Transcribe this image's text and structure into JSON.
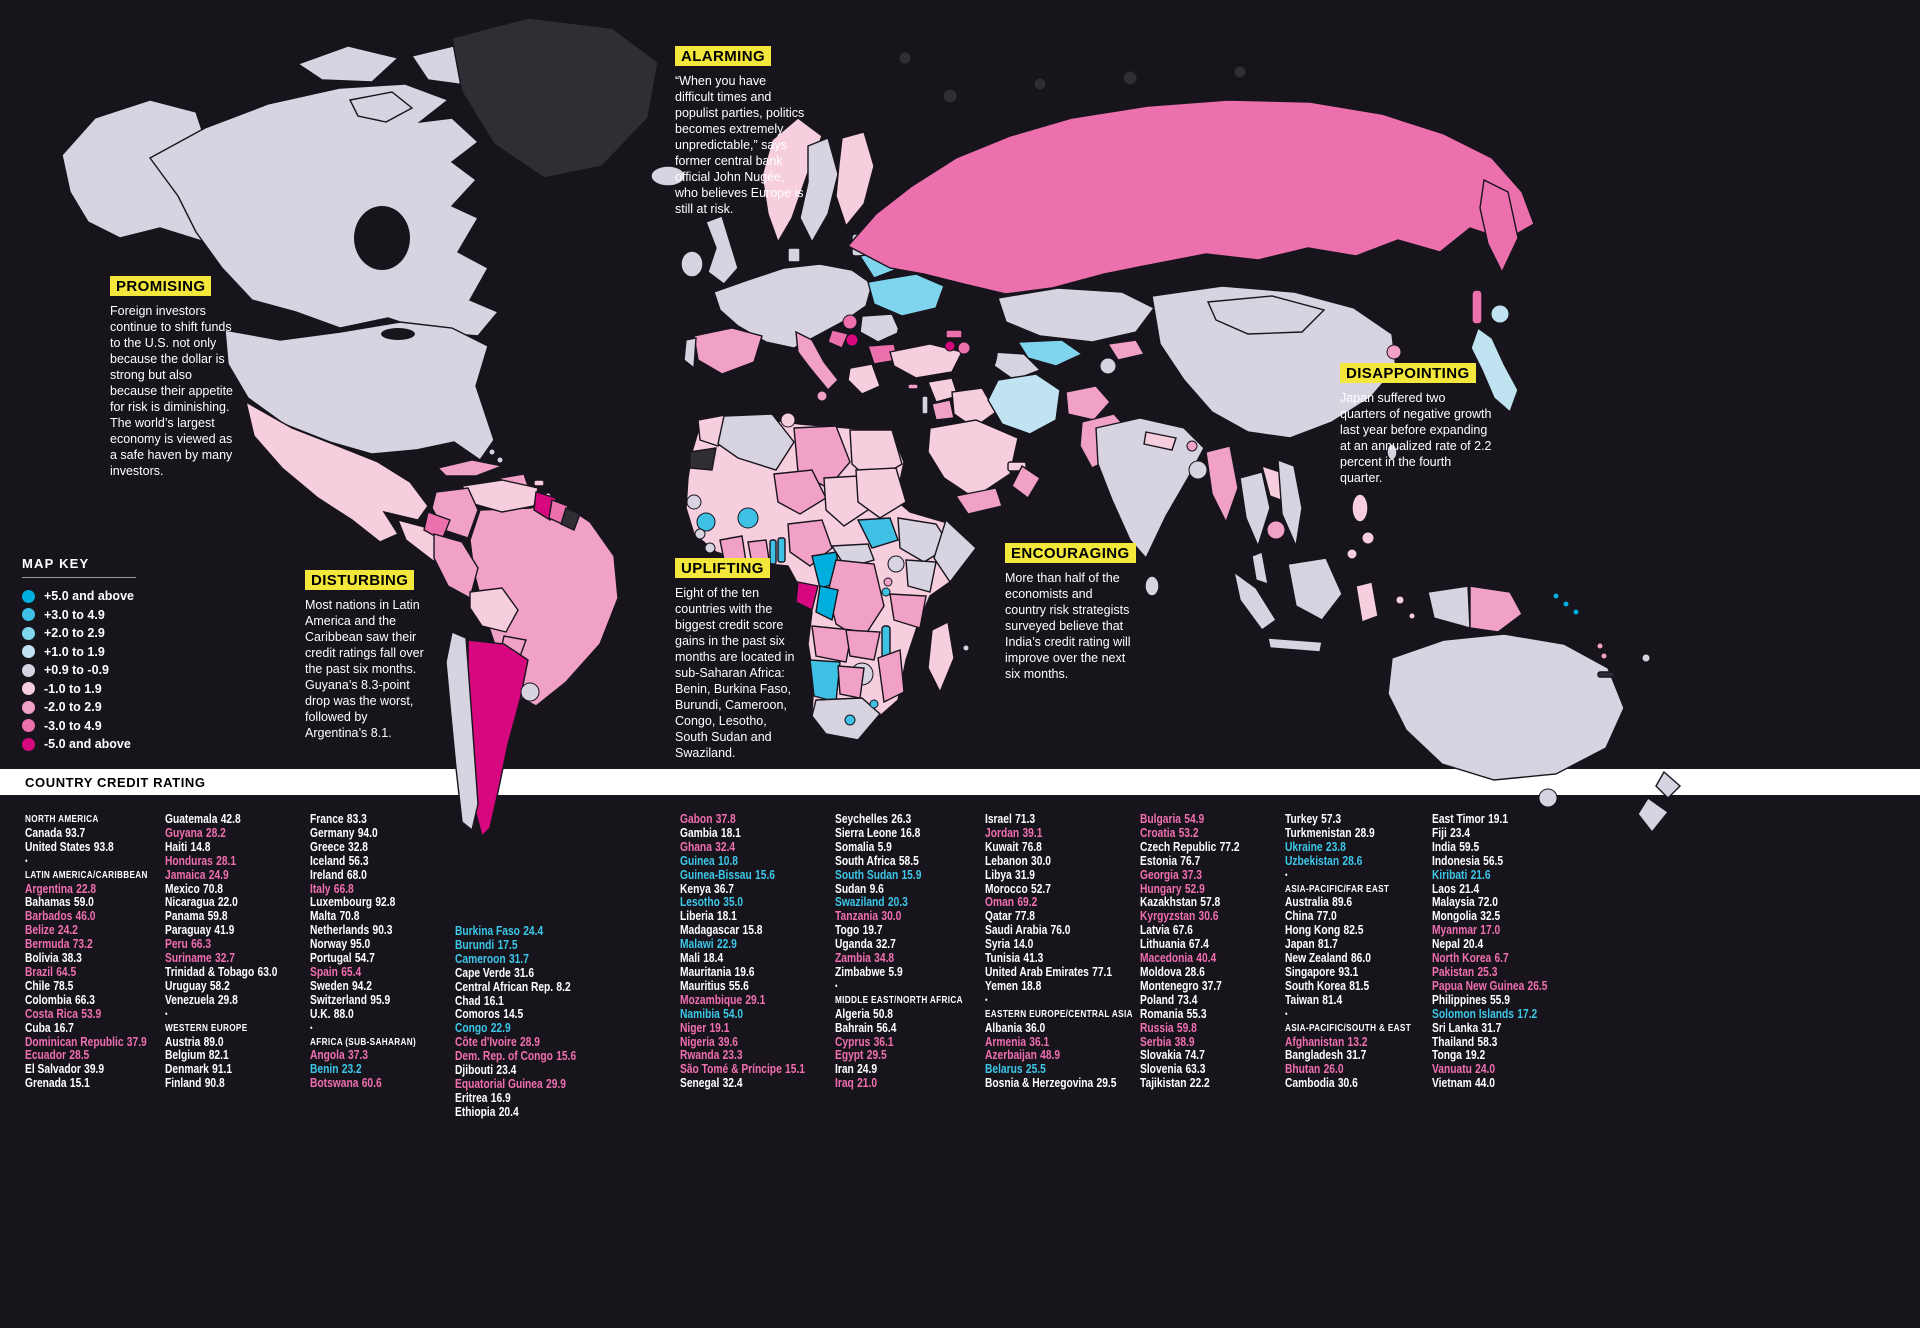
{
  "colors": {
    "background": "#18141c",
    "nodata": "#302d35",
    "callout_chip": "#f3e73b",
    "list_pink": "#f06fb0",
    "list_cyan": "#3cc7e8",
    "bar_bg": "#ffffff",
    "bar_text": "#000000"
  },
  "map_key": {
    "title": "MAP KEY",
    "items": [
      {
        "label": "+5.0 and above",
        "color": "#00aede"
      },
      {
        "label": "+3.0 to 4.9",
        "color": "#3fc0e5"
      },
      {
        "label": "+2.0 to 2.9",
        "color": "#7fd4ee"
      },
      {
        "label": "+1.0 to 1.9",
        "color": "#bfe3f0"
      },
      {
        "label": "+0.9 to -0.9",
        "color": "#d7d3e0"
      },
      {
        "label": "-1.0 to 1.9",
        "color": "#f6cede"
      },
      {
        "label": "-2.0 to 2.9",
        "color": "#f2a1c6"
      },
      {
        "label": "-3.0 to 4.9",
        "color": "#ec6fae"
      },
      {
        "label": "-5.0 and above",
        "color": "#d6077f"
      }
    ]
  },
  "callouts": [
    {
      "id": "alarming",
      "title": "ALARMING",
      "body": "“When you have difficult times and populist parties, politics becomes extremely unpredictable,” says former central bank official John Nugée, who believes Europe is still at risk."
    },
    {
      "id": "promising",
      "title": "PROMISING",
      "body": "Foreign investors continue to shift funds to the U.S. not only because the dollar is strong but also because their appetite for risk is diminishing. The world’s largest economy is viewed as a safe haven by many investors."
    },
    {
      "id": "disappointing",
      "title": "DISAPPOINTING",
      "body": "Japan suffered two quarters of negative growth last year before expanding at an annualized rate of 2.2 percent in the fourth quarter."
    },
    {
      "id": "disturbing",
      "title": "DISTURBING",
      "body": "Most nations in Latin America and the Caribbean saw their credit ratings fall over the past six months. Guyana’s 8.3-point drop was the worst, followed by Argentina’s 8.1."
    },
    {
      "id": "uplifting",
      "title": "UPLIFTING",
      "body": "Eight of the ten countries with the biggest credit score gains in the past six months are located in sub-Saharan Africa: Benin, Burkina Faso, Burundi, Cameroon, Congo, Lesotho, South Sudan and Swaziland."
    },
    {
      "id": "encouraging",
      "title": "ENCOURAGING",
      "body": "More than half of the economists and country risk strategists surveyed believe that India’s credit rating will improve over the next six months."
    }
  ],
  "ratings": {
    "title": "COUNTRY CREDIT RATING",
    "columns": [
      {
        "entries": [
          {
            "h": "NORTH AMERICA"
          },
          {
            "n": "Canada",
            "v": "93.7"
          },
          {
            "n": "United States",
            "v": "93.8"
          },
          {
            "b": 1
          },
          {
            "h": "LATIN AMERICA/CARIBBEAN"
          },
          {
            "n": "Argentina",
            "v": "22.8",
            "s": "down"
          },
          {
            "n": "Bahamas",
            "v": "59.0"
          },
          {
            "n": "Barbados",
            "v": "46.0",
            "s": "down"
          },
          {
            "n": "Belize",
            "v": "24.2",
            "s": "down"
          },
          {
            "n": "Bermuda",
            "v": "73.2",
            "s": "down"
          },
          {
            "n": "Bolivia",
            "v": "38.3"
          },
          {
            "n": "Brazil",
            "v": "64.5",
            "s": "down"
          },
          {
            "n": "Chile",
            "v": "78.5"
          },
          {
            "n": "Colombia",
            "v": "66.3"
          },
          {
            "n": "Costa Rica",
            "v": "53.9",
            "s": "down"
          },
          {
            "n": "Cuba",
            "v": "16.7"
          },
          {
            "n": "Dominican Republic",
            "v": "37.9",
            "s": "down"
          },
          {
            "n": "Ecuador",
            "v": "28.5",
            "s": "down"
          },
          {
            "n": "El Salvador",
            "v": "39.9"
          },
          {
            "n": "Grenada",
            "v": "15.1"
          }
        ]
      },
      {
        "entries": [
          {
            "n": "Guatemala",
            "v": "42.8"
          },
          {
            "n": "Guyana",
            "v": "28.2",
            "s": "down"
          },
          {
            "n": "Haiti",
            "v": "14.8"
          },
          {
            "n": "Honduras",
            "v": "28.1",
            "s": "down"
          },
          {
            "n": "Jamaica",
            "v": "24.9",
            "s": "down"
          },
          {
            "n": "Mexico",
            "v": "70.8"
          },
          {
            "n": "Nicaragua",
            "v": "22.0"
          },
          {
            "n": "Panama",
            "v": "59.8"
          },
          {
            "n": "Paraguay",
            "v": "41.9"
          },
          {
            "n": "Peru",
            "v": "66.3",
            "s": "down"
          },
          {
            "n": "Suriname",
            "v": "32.7",
            "s": "down"
          },
          {
            "n": "Trinidad & Tobago",
            "v": "63.0"
          },
          {
            "n": "Uruguay",
            "v": "58.2"
          },
          {
            "n": "Venezuela",
            "v": "29.8"
          },
          {
            "b": 1
          },
          {
            "h": "WESTERN EUROPE"
          },
          {
            "n": "Austria",
            "v": "89.0"
          },
          {
            "n": "Belgium",
            "v": "82.1"
          },
          {
            "n": "Denmark",
            "v": "91.1"
          },
          {
            "n": "Finland",
            "v": "90.8"
          }
        ]
      },
      {
        "entries": [
          {
            "n": "France",
            "v": "83.3"
          },
          {
            "n": "Germany",
            "v": "94.0"
          },
          {
            "n": "Greece",
            "v": "32.8"
          },
          {
            "n": "Iceland",
            "v": "56.3"
          },
          {
            "n": "Ireland",
            "v": "68.0"
          },
          {
            "n": "Italy",
            "v": "66.8",
            "s": "down"
          },
          {
            "n": "Luxembourg",
            "v": "92.8"
          },
          {
            "n": "Malta",
            "v": "70.8"
          },
          {
            "n": "Netherlands",
            "v": "90.3"
          },
          {
            "n": "Norway",
            "v": "95.0"
          },
          {
            "n": "Portugal",
            "v": "54.7"
          },
          {
            "n": "Spain",
            "v": "65.4",
            "s": "down"
          },
          {
            "n": "Sweden",
            "v": "94.2"
          },
          {
            "n": "Switzerland",
            "v": "95.9"
          },
          {
            "n": "U.K.",
            "v": "88.0"
          },
          {
            "b": 1
          },
          {
            "h": "AFRICA (SUB-SAHARAN)"
          },
          {
            "n": "Angola",
            "v": "37.3",
            "s": "down"
          },
          {
            "n": "Benin",
            "v": "23.2",
            "s": "up"
          },
          {
            "n": "Botswana",
            "v": "60.6",
            "s": "down"
          }
        ]
      },
      {
        "entries": [
          {
            "n": "Burkina Faso",
            "v": "24.4",
            "s": "up"
          },
          {
            "n": "Burundi",
            "v": "17.5",
            "s": "up"
          },
          {
            "n": "Cameroon",
            "v": "31.7",
            "s": "up"
          },
          {
            "n": "Cape Verde",
            "v": "31.6"
          },
          {
            "n": "Central African Rep.",
            "v": "8.2"
          },
          {
            "n": "Chad",
            "v": "16.1"
          },
          {
            "n": "Comoros",
            "v": "14.5"
          },
          {
            "n": "Congo",
            "v": "22.9",
            "s": "up"
          },
          {
            "n": "Côte d'Ivoire",
            "v": "28.9",
            "s": "down"
          },
          {
            "n": "Dem. Rep. of Congo",
            "v": "15.6",
            "s": "down"
          },
          {
            "n": "Djibouti",
            "v": "23.4"
          },
          {
            "n": "Equatorial Guinea",
            "v": "29.9",
            "s": "down"
          },
          {
            "n": "Eritrea",
            "v": "16.9"
          },
          {
            "n": "Ethiopia",
            "v": "20.4"
          }
        ]
      },
      {
        "entries": [
          {
            "n": "Gabon",
            "v": "37.8",
            "s": "down"
          },
          {
            "n": "Gambia",
            "v": "18.1"
          },
          {
            "n": "Ghana",
            "v": "32.4",
            "s": "down"
          },
          {
            "n": "Guinea",
            "v": "10.8",
            "s": "up"
          },
          {
            "n": "Guinea-Bissau",
            "v": "15.6",
            "s": "up"
          },
          {
            "n": "Kenya",
            "v": "36.7"
          },
          {
            "n": "Lesotho",
            "v": "35.0",
            "s": "up"
          },
          {
            "n": "Liberia",
            "v": "18.1"
          },
          {
            "n": "Madagascar",
            "v": "15.8"
          },
          {
            "n": "Malawi",
            "v": "22.9",
            "s": "up"
          },
          {
            "n": "Mali",
            "v": "18.4"
          },
          {
            "n": "Mauritania",
            "v": "19.6"
          },
          {
            "n": "Mauritius",
            "v": "55.6"
          },
          {
            "n": "Mozambique",
            "v": "29.1",
            "s": "down"
          },
          {
            "n": "Namibia",
            "v": "54.0",
            "s": "up"
          },
          {
            "n": "Niger",
            "v": "19.1",
            "s": "down"
          },
          {
            "n": "Nigeria",
            "v": "39.6",
            "s": "down"
          },
          {
            "n": "Rwanda",
            "v": "23.3",
            "s": "down"
          },
          {
            "n": "São Tomé & Príncipe",
            "v": "15.1",
            "s": "down"
          },
          {
            "n": "Senegal",
            "v": "32.4"
          }
        ]
      },
      {
        "entries": [
          {
            "n": "Seychelles",
            "v": "26.3"
          },
          {
            "n": "Sierra Leone",
            "v": "16.8"
          },
          {
            "n": "Somalia",
            "v": "5.9"
          },
          {
            "n": "South Africa",
            "v": "58.5"
          },
          {
            "n": "South Sudan",
            "v": "15.9",
            "s": "up"
          },
          {
            "n": "Sudan",
            "v": "9.6"
          },
          {
            "n": "Swaziland",
            "v": "20.3",
            "s": "up"
          },
          {
            "n": "Tanzania",
            "v": "30.0",
            "s": "down"
          },
          {
            "n": "Togo",
            "v": "19.7"
          },
          {
            "n": "Uganda",
            "v": "32.7"
          },
          {
            "n": "Zambia",
            "v": "34.8",
            "s": "down"
          },
          {
            "n": "Zimbabwe",
            "v": "5.9"
          },
          {
            "b": 1
          },
          {
            "h": "MIDDLE EAST/NORTH AFRICA"
          },
          {
            "n": "Algeria",
            "v": "50.8"
          },
          {
            "n": "Bahrain",
            "v": "56.4"
          },
          {
            "n": "Cyprus",
            "v": "36.1",
            "s": "down"
          },
          {
            "n": "Egypt",
            "v": "29.5",
            "s": "down"
          },
          {
            "n": "Iran",
            "v": "24.9"
          },
          {
            "n": "Iraq",
            "v": "21.0",
            "s": "down"
          }
        ]
      },
      {
        "entries": [
          {
            "n": "Israel",
            "v": "71.3"
          },
          {
            "n": "Jordan",
            "v": "39.1",
            "s": "down"
          },
          {
            "n": "Kuwait",
            "v": "76.8"
          },
          {
            "n": "Lebanon",
            "v": "30.0"
          },
          {
            "n": "Libya",
            "v": "31.9"
          },
          {
            "n": "Morocco",
            "v": "52.7"
          },
          {
            "n": "Oman",
            "v": "69.2",
            "s": "down"
          },
          {
            "n": "Qatar",
            "v": "77.8"
          },
          {
            "n": "Saudi Arabia",
            "v": "76.0"
          },
          {
            "n": "Syria",
            "v": "14.0"
          },
          {
            "n": "Tunisia",
            "v": "41.3"
          },
          {
            "n": "United Arab Emirates",
            "v": "77.1"
          },
          {
            "n": "Yemen",
            "v": "18.8"
          },
          {
            "b": 1
          },
          {
            "h": "EASTERN EUROPE/CENTRAL ASIA"
          },
          {
            "n": "Albania",
            "v": "36.0"
          },
          {
            "n": "Armenia",
            "v": "36.1",
            "s": "down"
          },
          {
            "n": "Azerbaijan",
            "v": "48.9",
            "s": "down"
          },
          {
            "n": "Belarus",
            "v": "25.5",
            "s": "up"
          },
          {
            "n": "Bosnia & Herzegovina",
            "v": "29.5"
          }
        ]
      },
      {
        "entries": [
          {
            "n": "Bulgaria",
            "v": "54.9",
            "s": "down"
          },
          {
            "n": "Croatia",
            "v": "53.2",
            "s": "down"
          },
          {
            "n": "Czech Republic",
            "v": "77.2"
          },
          {
            "n": "Estonia",
            "v": "76.7"
          },
          {
            "n": "Georgia",
            "v": "37.3",
            "s": "down"
          },
          {
            "n": "Hungary",
            "v": "52.9",
            "s": "down"
          },
          {
            "n": "Kazakhstan",
            "v": "57.8"
          },
          {
            "n": "Kyrgyzstan",
            "v": "30.6",
            "s": "down"
          },
          {
            "n": "Latvia",
            "v": "67.6"
          },
          {
            "n": "Lithuania",
            "v": "67.4"
          },
          {
            "n": "Macedonia",
            "v": "40.4",
            "s": "down"
          },
          {
            "n": "Moldova",
            "v": "28.6"
          },
          {
            "n": "Montenegro",
            "v": "37.7"
          },
          {
            "n": "Poland",
            "v": "73.4"
          },
          {
            "n": "Romania",
            "v": "55.3"
          },
          {
            "n": "Russia",
            "v": "59.8",
            "s": "down"
          },
          {
            "n": "Serbia",
            "v": "38.9",
            "s": "down"
          },
          {
            "n": "Slovakia",
            "v": "74.7"
          },
          {
            "n": "Slovenia",
            "v": "63.3"
          },
          {
            "n": "Tajikistan",
            "v": "22.2"
          }
        ]
      },
      {
        "entries": [
          {
            "n": "Turkey",
            "v": "57.3"
          },
          {
            "n": "Turkmenistan",
            "v": "28.9"
          },
          {
            "n": "Ukraine",
            "v": "23.8",
            "s": "up"
          },
          {
            "n": "Uzbekistan",
            "v": "28.6",
            "s": "up"
          },
          {
            "b": 1
          },
          {
            "h": "ASIA-PACIFIC/FAR EAST"
          },
          {
            "n": "Australia",
            "v": "89.6"
          },
          {
            "n": "China",
            "v": "77.0"
          },
          {
            "n": "Hong Kong",
            "v": "82.5"
          },
          {
            "n": "Japan",
            "v": "81.7"
          },
          {
            "n": "New Zealand",
            "v": "86.0"
          },
          {
            "n": "Singapore",
            "v": "93.1"
          },
          {
            "n": "South Korea",
            "v": "81.5"
          },
          {
            "n": "Taiwan",
            "v": "81.4"
          },
          {
            "b": 1
          },
          {
            "h": "ASIA-PACIFIC/SOUTH & EAST"
          },
          {
            "n": "Afghanistan",
            "v": "13.2",
            "s": "down"
          },
          {
            "n": "Bangladesh",
            "v": "31.7"
          },
          {
            "n": "Bhutan",
            "v": "26.0",
            "s": "down"
          },
          {
            "n": "Cambodia",
            "v": "30.6"
          }
        ]
      },
      {
        "entries": [
          {
            "n": "East Timor",
            "v": "19.1"
          },
          {
            "n": "Fiji",
            "v": "23.4"
          },
          {
            "n": "India",
            "v": "59.5"
          },
          {
            "n": "Indonesia",
            "v": "56.5"
          },
          {
            "n": "Kiribati",
            "v": "21.6",
            "s": "up"
          },
          {
            "n": "Laos",
            "v": "21.4"
          },
          {
            "n": "Malaysia",
            "v": "72.0"
          },
          {
            "n": "Mongolia",
            "v": "32.5"
          },
          {
            "n": "Myanmar",
            "v": "17.0",
            "s": "down"
          },
          {
            "n": "Nepal",
            "v": "20.4"
          },
          {
            "n": "North Korea",
            "v": "6.7",
            "s": "down"
          },
          {
            "n": "Pakistan",
            "v": "25.3",
            "s": "down"
          },
          {
            "n": "Papua New Guinea",
            "v": "26.5",
            "s": "down"
          },
          {
            "n": "Philippines",
            "v": "55.9"
          },
          {
            "n": "Solomon Islands",
            "v": "17.2",
            "s": "up"
          },
          {
            "n": "Sri Lanka",
            "v": "31.7"
          },
          {
            "n": "Thailand",
            "v": "58.3"
          },
          {
            "n": "Tonga",
            "v": "19.2"
          },
          {
            "n": "Vanuatu",
            "v": "24.0",
            "s": "down"
          },
          {
            "n": "Vietnam",
            "v": "44.0"
          }
        ]
      }
    ]
  }
}
